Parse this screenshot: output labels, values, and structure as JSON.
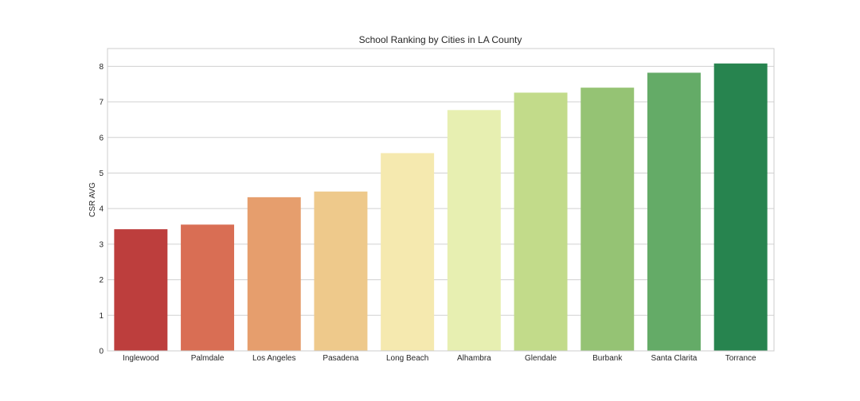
{
  "chart_data": {
    "type": "bar",
    "title": "School Ranking by Cities in LA County",
    "xlabel": "",
    "ylabel": "CSR AVG",
    "ylim": [
      0,
      8.5
    ],
    "yticks": [
      0,
      1,
      2,
      3,
      4,
      5,
      6,
      7,
      8
    ],
    "grid": true,
    "legend": "none",
    "categories": [
      "Inglewood",
      "Palmdale",
      "Los Angeles",
      "Pasadena",
      "Long Beach",
      "Alhambra",
      "Glendale",
      "Burbank",
      "Santa Clarita",
      "Torrance"
    ],
    "values": [
      3.42,
      3.55,
      4.32,
      4.48,
      5.56,
      6.77,
      7.26,
      7.4,
      7.82,
      8.08
    ],
    "colors": [
      "#bd3e3d",
      "#d96e54",
      "#e69e6d",
      "#eec98b",
      "#f5e9af",
      "#e7efb1",
      "#c2db8a",
      "#95c374",
      "#64ab67",
      "#27844f"
    ]
  }
}
